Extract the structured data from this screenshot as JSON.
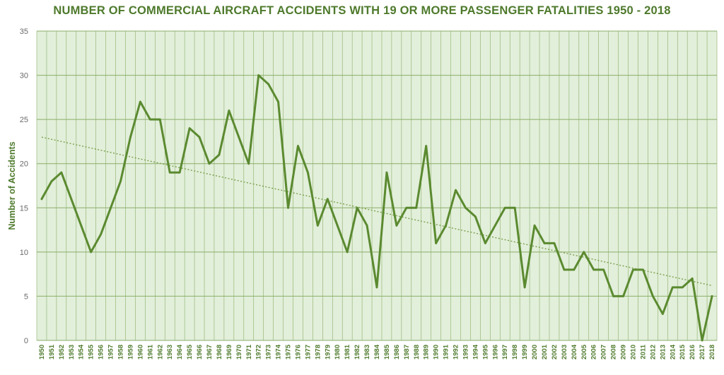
{
  "chart_data": {
    "type": "line",
    "title": "NUMBER OF COMMERCIAL AIRCRAFT ACCIDENTS WITH 19 OR MORE  PASSENGER FATALITIES  1950 - 2018",
    "xlabel": "",
    "ylabel": "Number of Accidents",
    "ylim": [
      0,
      35
    ],
    "yticks": [
      0,
      5,
      10,
      15,
      20,
      25,
      30,
      35
    ],
    "grid": true,
    "legend": "none",
    "categories": [
      "1950",
      "1951",
      "1952",
      "1953",
      "1954",
      "1955",
      "1956",
      "1957",
      "1958",
      "1959",
      "1960",
      "1961",
      "1962",
      "1963",
      "1964",
      "1965",
      "1966",
      "1967",
      "1968",
      "1969",
      "1970",
      "1971",
      "1972",
      "1973",
      "1974",
      "1975",
      "1976",
      "1977",
      "1978",
      "1979",
      "1980",
      "1981",
      "1982",
      "1983",
      "1984",
      "1985",
      "1986",
      "1987",
      "1988",
      "1989",
      "1990",
      "1991",
      "1992",
      "1993",
      "1994",
      "1995",
      "1996",
      "1997",
      "1998",
      "1999",
      "2000",
      "2001",
      "2002",
      "2003",
      "2004",
      "2005",
      "2006",
      "2007",
      "2008",
      "2009",
      "2010",
      "2011",
      "2012",
      "2013",
      "2014",
      "2015",
      "2016",
      "2017",
      "2018"
    ],
    "series": [
      {
        "values": [
          16,
          18,
          19,
          16,
          13,
          10,
          12,
          15,
          18,
          23,
          27,
          25,
          25,
          19,
          19,
          24,
          23,
          20,
          21,
          26,
          23,
          20,
          30,
          29,
          27,
          15,
          22,
          19,
          13,
          16,
          13,
          10,
          15,
          13,
          6,
          19,
          13,
          15,
          15,
          22,
          11,
          13,
          17,
          15,
          14,
          11,
          13,
          15,
          15,
          6,
          13,
          11,
          11,
          8,
          8,
          10,
          8,
          8,
          5,
          5,
          8,
          8,
          5,
          3,
          6,
          6,
          7,
          0,
          5
        ]
      }
    ],
    "trendline": {
      "type": "linear",
      "start": 23,
      "end": 6.2
    },
    "colors": {
      "line": "#5b8a30",
      "trend": "#7aa04e",
      "plot_bg": "#e2efda",
      "grid": "#8aae6a",
      "text": "#4e7a2c",
      "axis_text": "#6a6a6a"
    }
  }
}
